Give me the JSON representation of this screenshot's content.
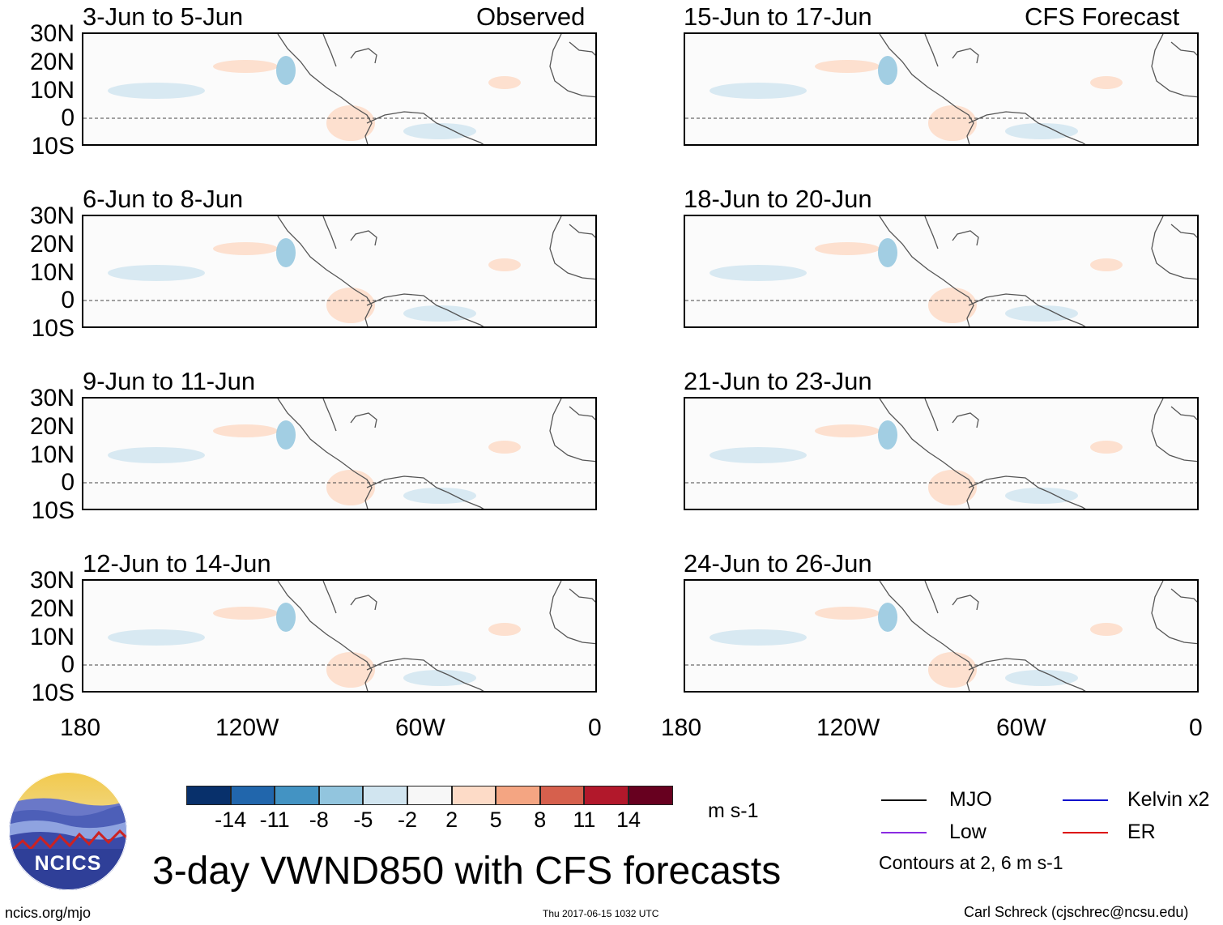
{
  "header": {
    "observed_label": "Observed",
    "forecast_label": "CFS Forecast"
  },
  "panels_left": [
    {
      "title": "3-Jun to 5-Jun"
    },
    {
      "title": "6-Jun to 8-Jun"
    },
    {
      "title": "9-Jun to 11-Jun"
    },
    {
      "title": "12-Jun to 14-Jun"
    }
  ],
  "panels_right": [
    {
      "title": "15-Jun to 17-Jun"
    },
    {
      "title": "18-Jun to 20-Jun"
    },
    {
      "title": "21-Jun to 23-Jun"
    },
    {
      "title": "24-Jun to 26-Jun"
    }
  ],
  "lat_labels": [
    "30N",
    "20N",
    "10N",
    "0",
    "10S"
  ],
  "lon_labels": [
    "180",
    "120W",
    "60W",
    "0"
  ],
  "colorbar": {
    "colors": [
      "#08306b",
      "#2166ac",
      "#4393c3",
      "#92c5de",
      "#d1e5f0",
      "#f7f7f7",
      "#fddbc7",
      "#f4a582",
      "#d6604d",
      "#b2182b",
      "#67001f"
    ],
    "tick_labels": [
      "-14",
      "-11",
      "-8",
      "-5",
      "-2",
      "2",
      "5",
      "8",
      "11",
      "14"
    ],
    "units": "m s-1"
  },
  "legend": {
    "items": [
      {
        "label": "MJO",
        "color": "#000000"
      },
      {
        "label": "Kelvin x2",
        "color": "#0000cc"
      },
      {
        "label": "Low",
        "color": "#8a2be2"
      },
      {
        "label": "ER",
        "color": "#dd0000"
      }
    ],
    "contours_note": "Contours at 2, 6 m s-1"
  },
  "title": "3-day VWND850 with CFS forecasts",
  "logo": {
    "text": "NCICS"
  },
  "footer": {
    "url": "ncics.org/mjo",
    "timestamp": "Thu 2017-06-15 1032 UTC",
    "author": "Carl Schreck (cjschrec@ncsu.edu)"
  }
}
